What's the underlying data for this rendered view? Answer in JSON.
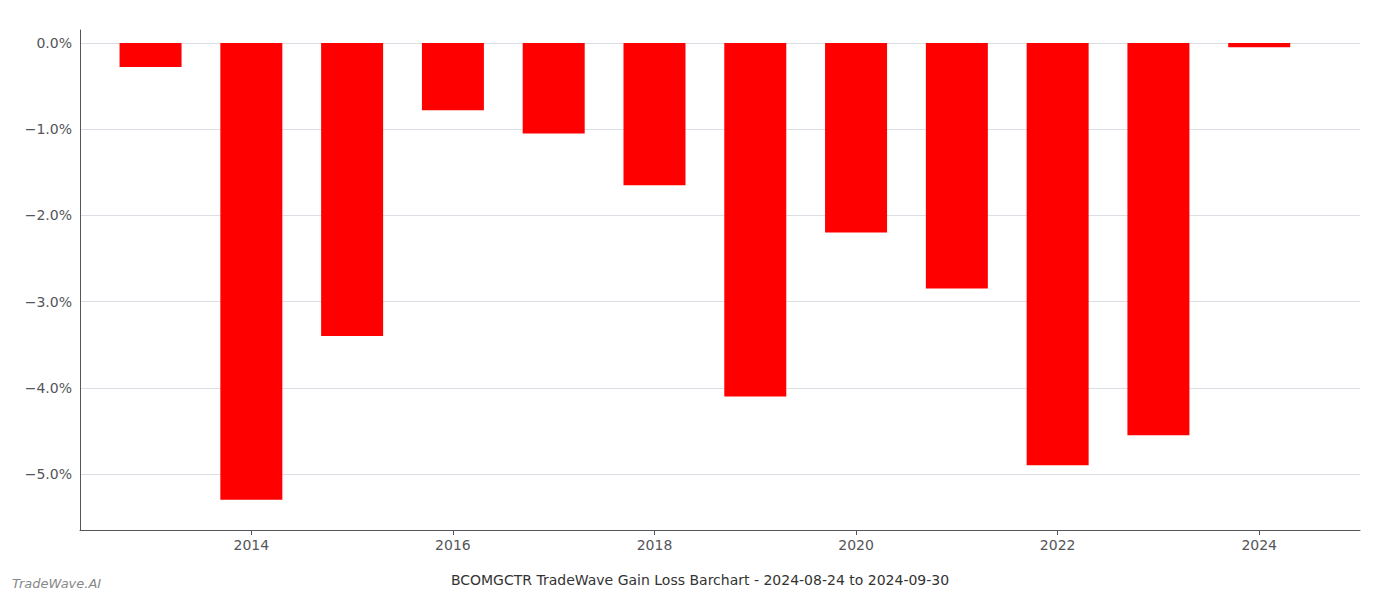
{
  "chart_data": {
    "type": "bar",
    "title": "BCOMGCTR TradeWave Gain Loss Barchart - 2024-08-24 to 2024-09-30",
    "annotations": [
      "TradeWave.AI"
    ],
    "x": [
      2013,
      2014,
      2015,
      2016,
      2017,
      2018,
      2019,
      2020,
      2021,
      2022,
      2023,
      2024
    ],
    "values": [
      -0.28,
      -5.3,
      -3.4,
      -0.78,
      -1.05,
      -1.65,
      -4.1,
      -2.2,
      -2.85,
      -4.9,
      -4.55,
      -0.05
    ],
    "color": "#ff0000",
    "xlim": [
      2012.3,
      2025.0
    ],
    "xticks": [
      2014,
      2016,
      2018,
      2020,
      2022,
      2024
    ],
    "ylim": [
      -5.65,
      0.15
    ],
    "yticks": [
      {
        "value": 0.0,
        "label": "0.0%"
      },
      {
        "value": -1.0,
        "label": "−1.0%"
      },
      {
        "value": -2.0,
        "label": "−2.0%"
      },
      {
        "value": -3.0,
        "label": "−3.0%"
      },
      {
        "value": -4.0,
        "label": "−4.0%"
      },
      {
        "value": -5.0,
        "label": "−5.0%"
      }
    ],
    "grid": true
  }
}
